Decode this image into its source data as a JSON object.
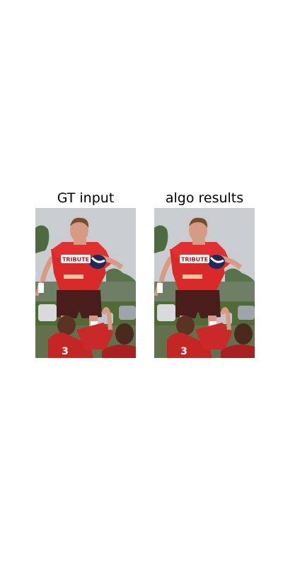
{
  "panels": [
    {
      "title": "GT input",
      "jersey_text": "TRIBUTE",
      "shirt_number": "3"
    },
    {
      "title": "algo results",
      "jersey_text": "TRIBUTE",
      "shirt_number": "3"
    }
  ],
  "colors": {
    "sky": "#c9cdd0",
    "trees": "#4e6a3f",
    "grass": "#4f6b36",
    "jersey": "#d92a2a",
    "shorts": "#4a1d1d",
    "skin": "#d69a85"
  }
}
